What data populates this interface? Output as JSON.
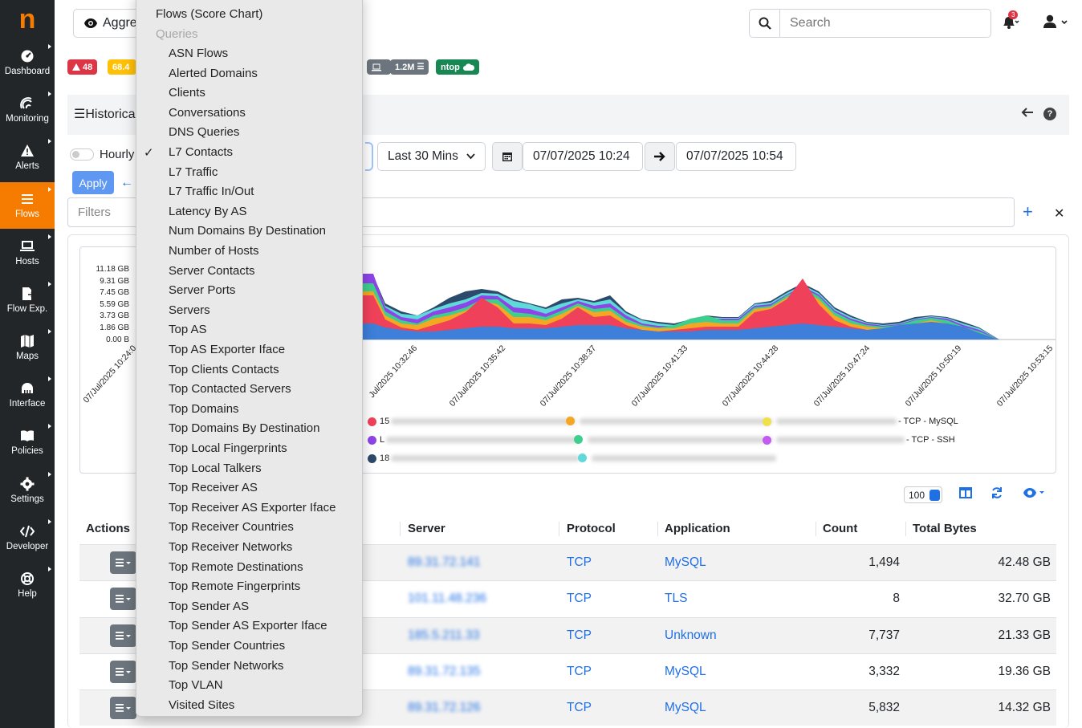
{
  "app": {
    "logo": "n"
  },
  "sidebar": {
    "items": [
      {
        "label": "Dashboard",
        "icon": "gauge-icon"
      },
      {
        "label": "Monitoring",
        "icon": "monitoring-icon"
      },
      {
        "label": "Alerts",
        "icon": "warning-icon"
      },
      {
        "label": "Flows",
        "icon": "flows-icon"
      },
      {
        "label": "Hosts",
        "icon": "laptop-icon"
      },
      {
        "label": "Flow Exp.",
        "icon": "file-export-icon"
      },
      {
        "label": "Maps",
        "icon": "map-icon"
      },
      {
        "label": "Interface",
        "icon": "interface-icon"
      },
      {
        "label": "Policies",
        "icon": "book-icon"
      },
      {
        "label": "Settings",
        "icon": "gear-icon"
      },
      {
        "label": "Developer",
        "icon": "code-icon"
      },
      {
        "label": "Help",
        "icon": "lifebuoy-icon"
      }
    ],
    "active": "Flows"
  },
  "topbar": {
    "aggregate_label": "Aggreg",
    "search_placeholder": "Search",
    "notification_count": "3"
  },
  "status_badges": [
    {
      "text": "48",
      "color": "#dc3545"
    },
    {
      "text": "68.4",
      "color": "#ffc107"
    },
    {
      "text": "1.2M",
      "color": "#6c757d"
    },
    {
      "text": "ntop",
      "color": "#198754"
    }
  ],
  "panel": {
    "title": "Historica",
    "hourly_label": "Hourly",
    "apply_label": "Apply",
    "time_range": "Last 30 Mins",
    "date_from": "07/07/2025 10:24",
    "date_to": "07/07/2025 10:54",
    "filters_placeholder": "Filters"
  },
  "dropdown": {
    "top_item": "Flows (Score Chart)",
    "section_header": "Queries",
    "selected": "L7 Contacts",
    "items": [
      "ASN Flows",
      "Alerted Domains",
      "Clients",
      "Conversations",
      "DNS Queries",
      "L7 Contacts",
      "L7 Traffic",
      "L7 Traffic In/Out",
      "Latency By AS",
      "Num Domains By Destination",
      "Number of Hosts",
      "Server Contacts",
      "Server Ports",
      "Servers",
      "Top AS",
      "Top AS Exporter Iface",
      "Top Clients Contacts",
      "Top Contacted Servers",
      "Top Domains",
      "Top Domains By Destination",
      "Top Local Fingerprints",
      "Top Local Talkers",
      "Top Receiver AS",
      "Top Receiver AS Exporter Iface",
      "Top Receiver Countries",
      "Top Receiver Networks",
      "Top Remote Destinations",
      "Top Remote Fingerprints",
      "Top Sender AS",
      "Top Sender AS Exporter Iface",
      "Top Sender Countries",
      "Top Sender Networks",
      "Top VLAN",
      "Visited Sites"
    ]
  },
  "chart_data": {
    "type": "area",
    "y_ticks": [
      "11.18 GB",
      "9.31 GB",
      "7.45 GB",
      "5.59 GB",
      "3.73 GB",
      "1.86 GB",
      "0.00 B"
    ],
    "x_ticks": [
      "07/Jul/2025 10:24:0",
      "Jul/2025 10:32:46",
      "07/Jul/2025 10:35:42",
      "07/Jul/2025 10:38:37",
      "07/Jul/2025 10:41:33",
      "07/Jul/2025 10:44:28",
      "07/Jul/2025 10:47:24",
      "07/Jul/2025 10:50:19",
      "07/Jul/2025 10:53:15"
    ],
    "legend": [
      {
        "color": "#f0415a",
        "label": "15",
        "suffix": ""
      },
      {
        "color": "#f5a623",
        "label": "",
        "suffix": ""
      },
      {
        "color": "#f0e04a",
        "label": "",
        "suffix": "- TCP - MySQL"
      },
      {
        "color": "#8e44e8",
        "label": "L",
        "suffix": ""
      },
      {
        "color": "#3ecf8e",
        "label": "",
        "suffix": ""
      },
      {
        "color": "#c05cf0",
        "label": "",
        "suffix": "- TCP - SSH"
      },
      {
        "color": "#2c4a6b",
        "label": "18",
        "suffix": ""
      },
      {
        "color": "#5fd9d9",
        "label": "",
        "suffix": ""
      }
    ],
    "series_colors": [
      "#3d7fd9",
      "#f0415a",
      "#f5a623",
      "#3ecf8e",
      "#8e44e8",
      "#2c4a6b",
      "#5fd9d9"
    ]
  },
  "table": {
    "per_page": "100",
    "columns": [
      "Actions",
      "Server",
      "Protocol",
      "Application",
      "Count",
      "Total Bytes"
    ],
    "rows": [
      {
        "server": "89.31.72.141",
        "protocol": "TCP",
        "application": "MySQL",
        "count": "1,494",
        "bytes": "42.48 GB"
      },
      {
        "server": "101.11.48.236",
        "protocol": "TCP",
        "application": "TLS",
        "count": "8",
        "bytes": "32.70 GB"
      },
      {
        "server": "185.5.211.33",
        "protocol": "TCP",
        "application": "Unknown",
        "count": "7,737",
        "bytes": "21.33 GB"
      },
      {
        "server": "89.31.72.135",
        "protocol": "TCP",
        "application": "MySQL",
        "count": "3,332",
        "bytes": "19.36 GB"
      },
      {
        "server": "89.31.72.126",
        "protocol": "TCP",
        "application": "MySQL",
        "count": "5,832",
        "bytes": "14.32 GB"
      }
    ]
  }
}
